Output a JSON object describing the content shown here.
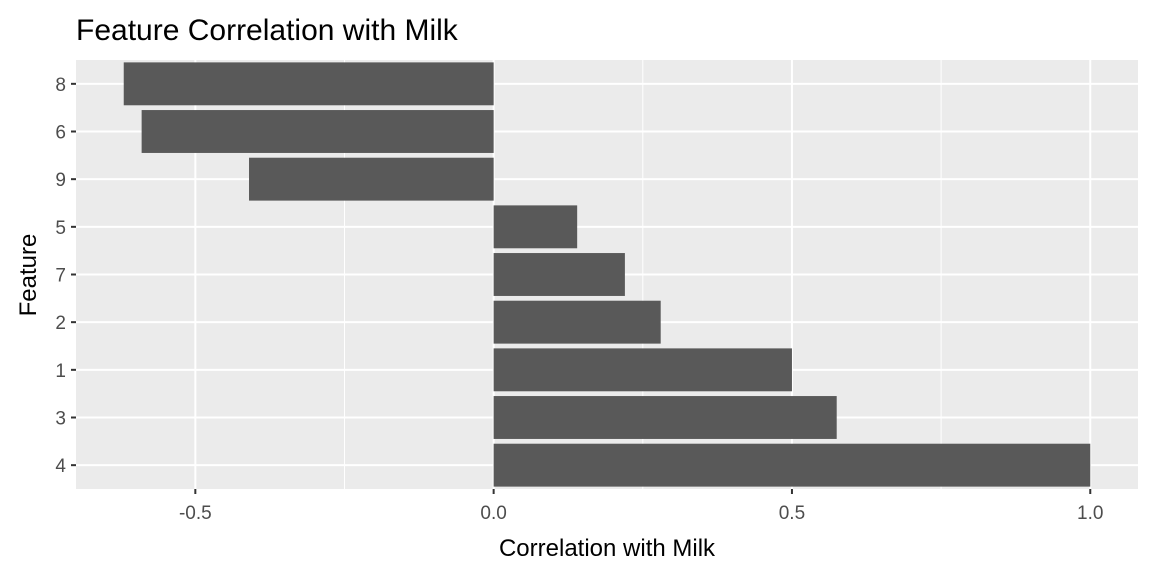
{
  "chart_data": {
    "type": "bar",
    "orientation": "horizontal",
    "title": "Feature Correlation with Milk",
    "xlabel": "Correlation with Milk",
    "ylabel": "Feature",
    "categories": [
      "8",
      "6",
      "9",
      "5",
      "7",
      "2",
      "1",
      "3",
      "4"
    ],
    "values": [
      -0.62,
      -0.59,
      -0.41,
      0.14,
      0.22,
      0.28,
      0.5,
      0.575,
      1.0
    ],
    "xlim": [
      -0.7,
      1.08
    ],
    "xticks": [
      -0.5,
      0.0,
      0.5,
      1.0
    ],
    "xtick_labels": [
      "-0.5",
      "0.0",
      "0.5",
      "1.0"
    ],
    "grid": true,
    "legend": "none",
    "colors": {
      "bar": "#595959",
      "panel": "#ebebeb",
      "grid": "#ffffff",
      "tick_text": "#4d4d4d",
      "tick_mark": "#333333"
    }
  }
}
